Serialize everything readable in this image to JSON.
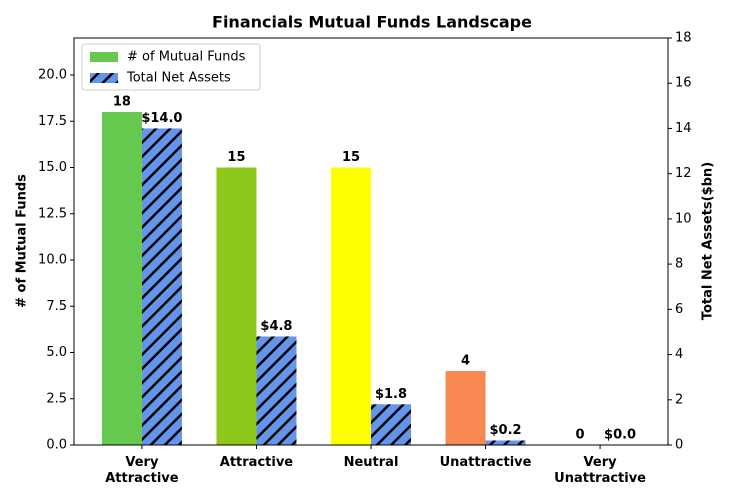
{
  "chart_data": {
    "type": "bar",
    "title": "Financials Mutual Funds Landscape",
    "categories": [
      "Very\nAttractive",
      "Attractive",
      "Neutral",
      "Unattractive",
      "Very\nUnattractive"
    ],
    "ylabel": "# of Mutual Funds",
    "y2label": "Total Net Assets($bn)",
    "series": [
      {
        "name": "# of Mutual Funds",
        "color": "#66c94f",
        "colors": [
          "#66c94f",
          "#8dc71a",
          "#ffff00",
          "#f98852",
          "#e0301e"
        ],
        "values": [
          18,
          15,
          15,
          4,
          0
        ]
      },
      {
        "name": "Total Net Assets",
        "color": "#6495ed",
        "hatch": true,
        "axis": "y2",
        "values": [
          14.0,
          4.8,
          1.8,
          0.2,
          0.0
        ],
        "value_labels": [
          "$14.0",
          "$4.8",
          "$1.8",
          "$0.2",
          "$0.0"
        ]
      }
    ],
    "ylim": [
      0,
      22
    ],
    "yticks": [
      {
        "value": 0,
        "label": "0.0"
      },
      {
        "value": 2.5,
        "label": "2.5"
      },
      {
        "value": 5,
        "label": "5.0"
      },
      {
        "value": 7.5,
        "label": "7.5"
      },
      {
        "value": 10,
        "label": "10.0"
      },
      {
        "value": 12.5,
        "label": "12.5"
      },
      {
        "value": 15,
        "label": "15.0"
      },
      {
        "value": 17.5,
        "label": "17.5"
      },
      {
        "value": 20,
        "label": "20.0"
      }
    ],
    "y2lim": [
      0,
      18
    ],
    "y2ticks": [
      0,
      2,
      4,
      6,
      8,
      10,
      12,
      14,
      16,
      18
    ],
    "legend": "upper left"
  }
}
